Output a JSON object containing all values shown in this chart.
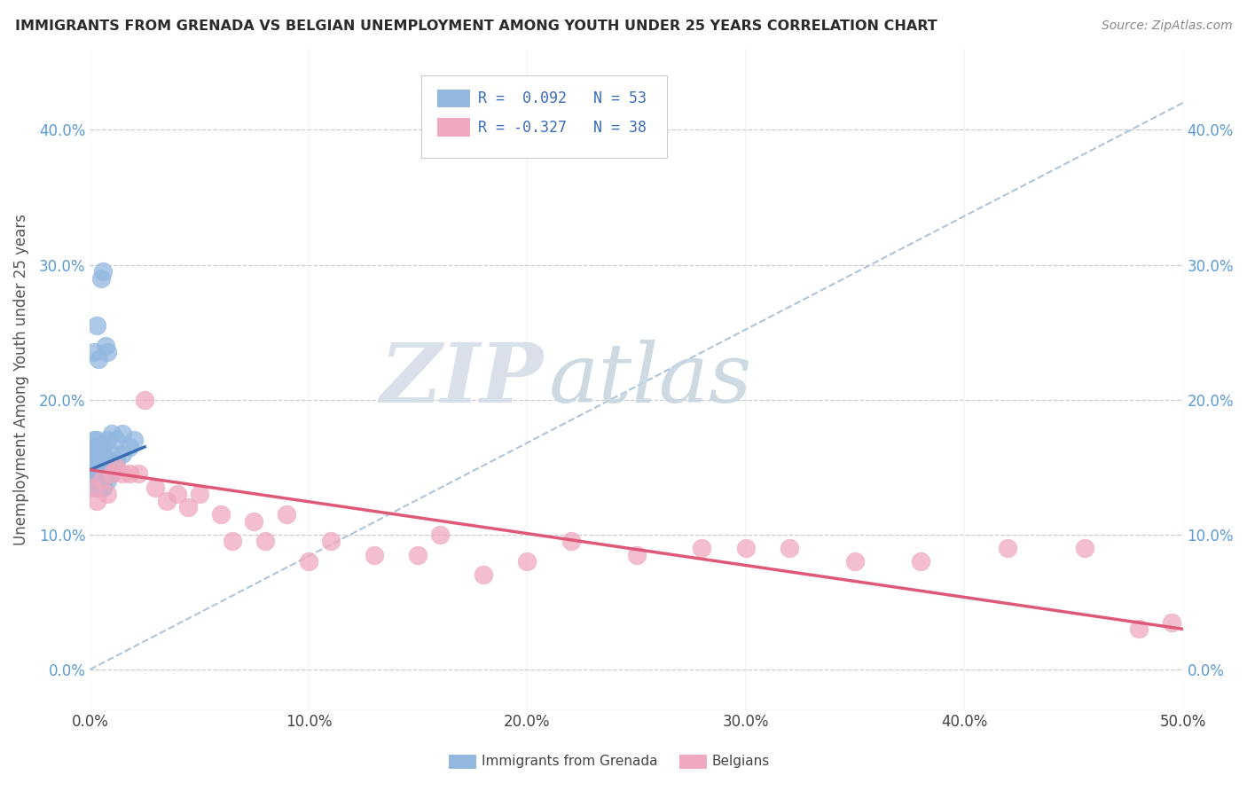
{
  "title": "IMMIGRANTS FROM GRENADA VS BELGIAN UNEMPLOYMENT AMONG YOUTH UNDER 25 YEARS CORRELATION CHART",
  "source": "Source: ZipAtlas.com",
  "ylabel": "Unemployment Among Youth under 25 years",
  "xlim": [
    0.0,
    0.5
  ],
  "ylim": [
    -0.03,
    0.46
  ],
  "yticks": [
    0.0,
    0.1,
    0.2,
    0.3,
    0.4
  ],
  "ytick_labels": [
    "0.0%",
    "10.0%",
    "20.0%",
    "30.0%",
    "40.0%"
  ],
  "xticks": [
    0.0,
    0.1,
    0.2,
    0.3,
    0.4,
    0.5
  ],
  "xtick_labels": [
    "0.0%",
    "10.0%",
    "20.0%",
    "30.0%",
    "40.0%",
    "50.0%"
  ],
  "watermark_zip": "ZIP",
  "watermark_atlas": "atlas",
  "series1_color": "#92b8e0",
  "series2_color": "#f0a8be",
  "trendline1_color": "#3a6db5",
  "trendline2_color": "#e05878",
  "diagonal_color": "#b0c4d8",
  "background_color": "#ffffff",
  "scatter1_x": [
    0.001,
    0.001,
    0.001,
    0.001,
    0.001,
    0.002,
    0.002,
    0.002,
    0.002,
    0.002,
    0.002,
    0.003,
    0.003,
    0.003,
    0.003,
    0.003,
    0.003,
    0.003,
    0.004,
    0.004,
    0.004,
    0.004,
    0.004,
    0.004,
    0.005,
    0.005,
    0.005,
    0.005,
    0.005,
    0.006,
    0.006,
    0.006,
    0.006,
    0.008,
    0.008,
    0.008,
    0.01,
    0.01,
    0.01,
    0.012,
    0.012,
    0.015,
    0.015,
    0.018,
    0.02,
    0.002,
    0.003,
    0.004,
    0.005,
    0.006,
    0.007,
    0.008
  ],
  "scatter1_y": [
    0.145,
    0.15,
    0.155,
    0.16,
    0.165,
    0.14,
    0.145,
    0.15,
    0.155,
    0.16,
    0.17,
    0.135,
    0.14,
    0.145,
    0.15,
    0.155,
    0.16,
    0.17,
    0.135,
    0.14,
    0.145,
    0.15,
    0.155,
    0.165,
    0.135,
    0.14,
    0.145,
    0.155,
    0.165,
    0.135,
    0.14,
    0.15,
    0.165,
    0.14,
    0.155,
    0.17,
    0.145,
    0.16,
    0.175,
    0.155,
    0.17,
    0.16,
    0.175,
    0.165,
    0.17,
    0.235,
    0.255,
    0.23,
    0.29,
    0.295,
    0.24,
    0.235
  ],
  "scatter2_x": [
    0.001,
    0.003,
    0.005,
    0.008,
    0.01,
    0.012,
    0.015,
    0.018,
    0.022,
    0.025,
    0.03,
    0.035,
    0.04,
    0.045,
    0.05,
    0.06,
    0.065,
    0.075,
    0.08,
    0.09,
    0.1,
    0.11,
    0.13,
    0.15,
    0.16,
    0.18,
    0.2,
    0.22,
    0.25,
    0.28,
    0.3,
    0.32,
    0.35,
    0.38,
    0.42,
    0.455,
    0.48,
    0.495
  ],
  "scatter2_y": [
    0.135,
    0.125,
    0.14,
    0.13,
    0.145,
    0.15,
    0.145,
    0.145,
    0.145,
    0.2,
    0.135,
    0.125,
    0.13,
    0.12,
    0.13,
    0.115,
    0.095,
    0.11,
    0.095,
    0.115,
    0.08,
    0.095,
    0.085,
    0.085,
    0.1,
    0.07,
    0.08,
    0.095,
    0.085,
    0.09,
    0.09,
    0.09,
    0.08,
    0.08,
    0.09,
    0.09,
    0.03,
    0.035
  ],
  "trendline1_x": [
    0.0,
    0.025
  ],
  "trendline1_y_start": 0.148,
  "trendline1_y_end": 0.165,
  "trendline2_x": [
    0.0,
    0.5
  ],
  "trendline2_y_start": 0.148,
  "trendline2_y_end": 0.03
}
